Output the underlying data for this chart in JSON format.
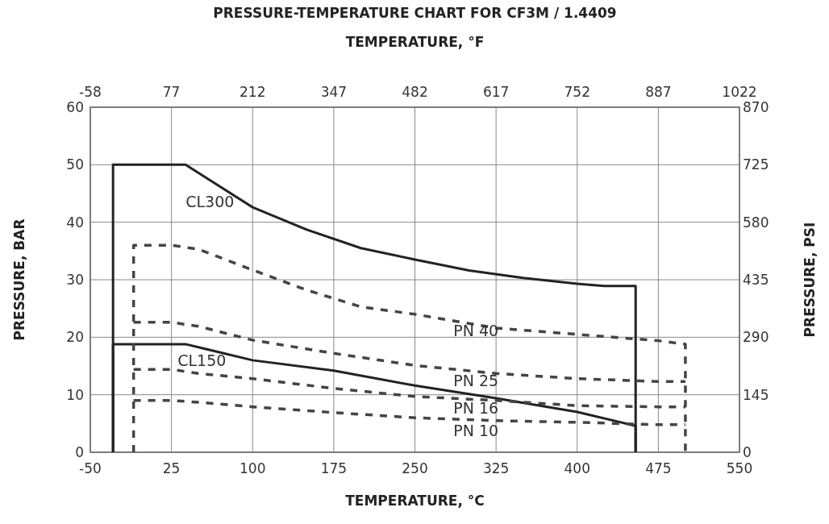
{
  "chart_data": {
    "type": "line",
    "title": "PRESSURE-TEMPERATURE CHART FOR CF3M / 1.4409",
    "x2label": "TEMPERATURE, °F",
    "xlabel": "TEMPERATURE, °C",
    "ylabel": "PRESSURE, BAR",
    "y2label": "PRESSURE, PSI",
    "xlim": [
      -50,
      550
    ],
    "xticks": [
      -50,
      25,
      100,
      175,
      250,
      325,
      400,
      475,
      550
    ],
    "x2lim": [
      -58,
      1022
    ],
    "x2ticks": [
      -58,
      77,
      212,
      347,
      482,
      617,
      752,
      887,
      1022
    ],
    "ylim": [
      0,
      60
    ],
    "yticks": [
      0,
      10,
      20,
      30,
      40,
      50,
      60
    ],
    "y2lim": [
      0,
      870
    ],
    "y2ticks": [
      0,
      145,
      290,
      435,
      580,
      725,
      870
    ],
    "grid": true,
    "series": [
      {
        "name": "CL300",
        "color": "#222222",
        "line_style": "solid",
        "x": [
          -29,
          -29,
          38,
          100,
          150,
          200,
          250,
          300,
          350,
          400,
          425,
          454,
          454
        ],
        "values": [
          0,
          50,
          50,
          42.6,
          38.7,
          35.5,
          33.5,
          31.6,
          30.3,
          29.3,
          28.9,
          28.9,
          0
        ]
      },
      {
        "name": "CL150",
        "color": "#222222",
        "line_style": "solid",
        "x": [
          -29,
          -29,
          38,
          100,
          175,
          250,
          325,
          400,
          454,
          454
        ],
        "values": [
          0,
          18.8,
          18.8,
          16,
          14.2,
          11.6,
          9.4,
          7,
          4.6,
          0
        ]
      },
      {
        "name": "PN 40",
        "color": "#444444",
        "line_style": "dashed",
        "x": [
          -10,
          -10,
          25,
          50,
          100,
          150,
          200,
          250,
          325,
          400,
          475,
          500,
          500
        ],
        "values": [
          0,
          36,
          36,
          35.3,
          31.7,
          28.2,
          25.3,
          24,
          21.6,
          20.5,
          19.4,
          18.8,
          0
        ]
      },
      {
        "color": "#444444",
        "line_style": "dashed",
        "x": [
          -10,
          25,
          50,
          100,
          175,
          250,
          325,
          400,
          475,
          500
        ],
        "name": "PN 25",
        "values": [
          22.6,
          22.6,
          21.9,
          19.5,
          17.2,
          15.1,
          13.7,
          12.8,
          12.3,
          12.3
        ]
      },
      {
        "color": "#444444",
        "line_style": "dashed",
        "x": [
          -10,
          25,
          50,
          100,
          175,
          250,
          325,
          400,
          475,
          500
        ],
        "name": "PN 16",
        "values": [
          14.4,
          14.4,
          13.7,
          12.8,
          11.1,
          9.7,
          9,
          8.1,
          7.9,
          7.9
        ]
      },
      {
        "color": "#444444",
        "line_style": "dashed",
        "x": [
          -10,
          25,
          50,
          100,
          175,
          250,
          325,
          400,
          475,
          500
        ],
        "name": "PN 10",
        "values": [
          9,
          9,
          8.7,
          7.9,
          6.9,
          6,
          5.5,
          5.2,
          4.8,
          4.8
        ]
      }
    ]
  }
}
